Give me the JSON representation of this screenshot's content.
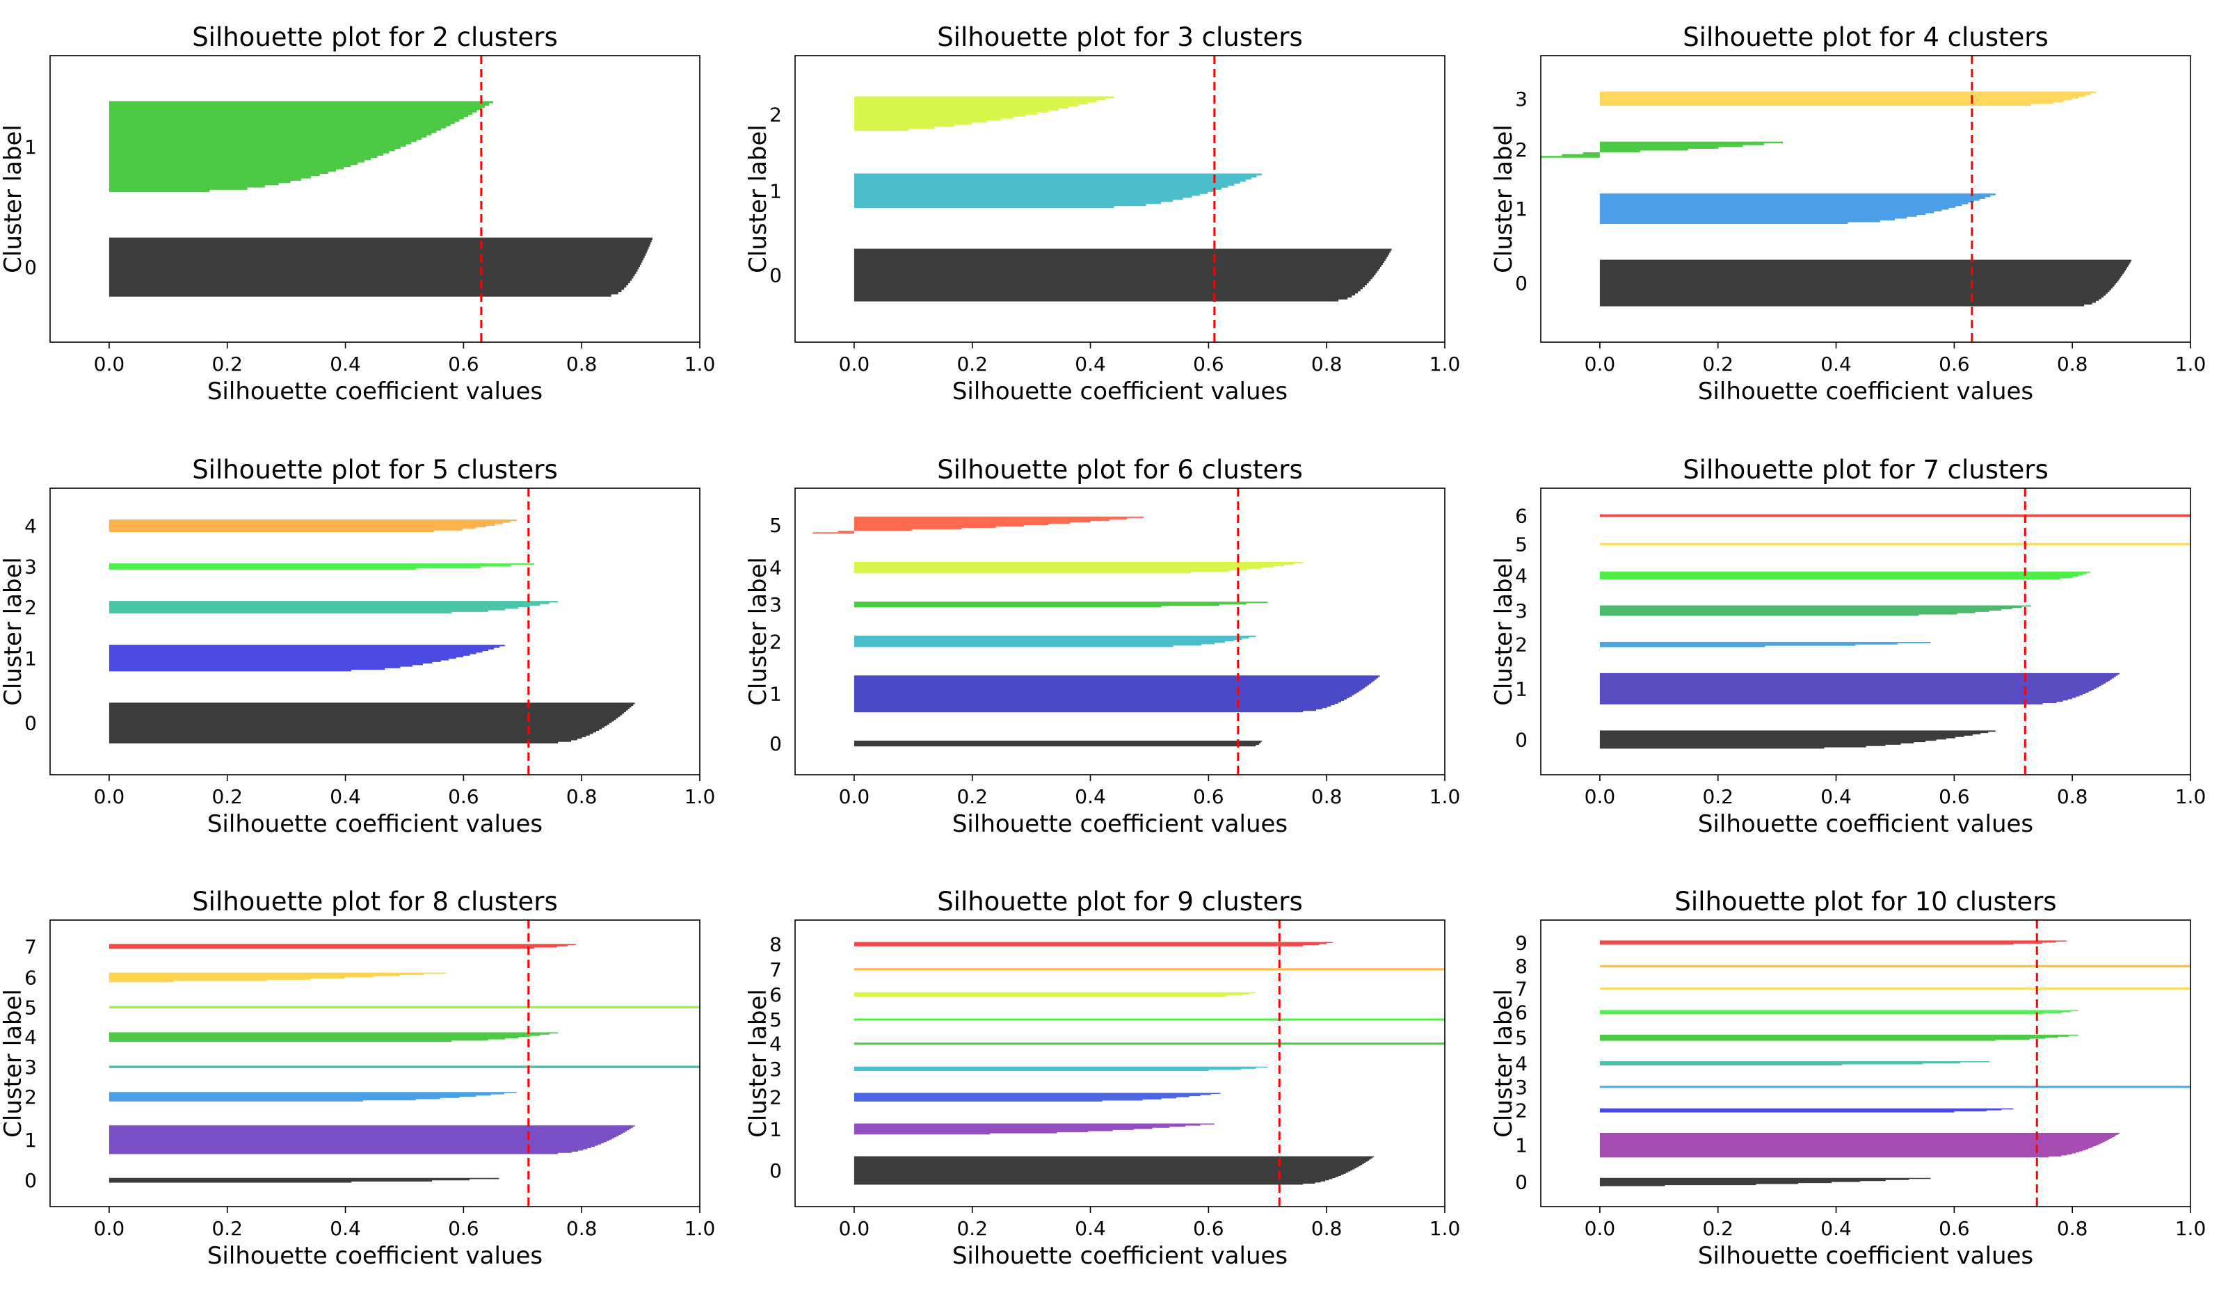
{
  "figure": {
    "background": "#ffffff"
  },
  "chart_data": [
    {
      "type": "bar",
      "title": "Silhouette plot for 2 clusters",
      "xlabel": "Silhouette coefficient values",
      "ylabel": "Cluster label",
      "xlim": [
        -0.1,
        1.0
      ],
      "xticks": [
        "0.0",
        "0.2",
        "0.4",
        "0.6",
        "0.8",
        "1.0"
      ],
      "average_silhouette": 0.63,
      "clusters": [
        {
          "label": "0",
          "color": "#3c3c3c",
          "size": 26,
          "max": 0.92,
          "min": 0.85,
          "neg": 0
        },
        {
          "label": "1",
          "color": "#4cca46",
          "size": 40,
          "max": 0.65,
          "min": 0.17,
          "neg": 0
        }
      ]
    },
    {
      "type": "bar",
      "title": "Silhouette plot for 3 clusters",
      "xlabel": "Silhouette coefficient values",
      "ylabel": "Cluster label",
      "xlim": [
        -0.1,
        1.0
      ],
      "xticks": [
        "0.0",
        "0.2",
        "0.4",
        "0.6",
        "0.8",
        "1.0"
      ],
      "average_silhouette": 0.61,
      "clusters": [
        {
          "label": "0",
          "color": "#3c3c3c",
          "size": 26,
          "max": 0.91,
          "min": 0.82,
          "neg": 0
        },
        {
          "label": "1",
          "color": "#4bbecc",
          "size": 17,
          "max": 0.69,
          "min": 0.44,
          "neg": 0
        },
        {
          "label": "2",
          "color": "#d9f74b",
          "size": 18,
          "max": 0.44,
          "min": 0.0,
          "neg": 0
        }
      ]
    },
    {
      "type": "bar",
      "title": "Silhouette plot for 4 clusters",
      "xlabel": "Silhouette coefficient values",
      "ylabel": "Cluster label",
      "xlim": [
        -0.1,
        1.0
      ],
      "xticks": [
        "0.0",
        "0.2",
        "0.4",
        "0.6",
        "0.8",
        "1.0"
      ],
      "average_silhouette": 0.63,
      "clusters": [
        {
          "label": "0",
          "color": "#3c3c3c",
          "size": 26,
          "max": 0.9,
          "min": 0.82,
          "neg": 0
        },
        {
          "label": "1",
          "color": "#4a9fe6",
          "size": 17,
          "max": 0.67,
          "min": 0.42,
          "neg": 0
        },
        {
          "label": "2",
          "color": "#4cca46",
          "size": 9,
          "max": 0.31,
          "min": -0.1,
          "neg": 0.35
        },
        {
          "label": "3",
          "color": "#fed65c",
          "size": 8,
          "max": 0.84,
          "min": 0.73,
          "neg": 0
        }
      ]
    },
    {
      "type": "bar",
      "title": "Silhouette plot for 5 clusters",
      "xlabel": "Silhouette coefficient values",
      "ylabel": "Cluster label",
      "xlim": [
        -0.1,
        1.0
      ],
      "xticks": [
        "0.0",
        "0.2",
        "0.4",
        "0.6",
        "0.8",
        "1.0"
      ],
      "average_silhouette": 0.71,
      "clusters": [
        {
          "label": "0",
          "color": "#3c3c3c",
          "size": 26,
          "max": 0.89,
          "min": 0.76,
          "neg": 0
        },
        {
          "label": "1",
          "color": "#4a4ae4",
          "size": 17,
          "max": 0.67,
          "min": 0.41,
          "neg": 0
        },
        {
          "label": "2",
          "color": "#4cc6a8",
          "size": 8,
          "max": 0.76,
          "min": 0.58,
          "neg": 0
        },
        {
          "label": "3",
          "color": "#4ef04c",
          "size": 4,
          "max": 0.72,
          "min": 0.52,
          "neg": 0
        },
        {
          "label": "4",
          "color": "#fdb24c",
          "size": 8,
          "max": 0.69,
          "min": 0.55,
          "neg": 0
        }
      ]
    },
    {
      "type": "bar",
      "title": "Silhouette plot for 6 clusters",
      "xlabel": "Silhouette coefficient values",
      "ylabel": "Cluster label",
      "xlim": [
        -0.1,
        1.0
      ],
      "xticks": [
        "0.0",
        "0.2",
        "0.4",
        "0.6",
        "0.8",
        "1.0"
      ],
      "average_silhouette": 0.65,
      "clusters": [
        {
          "label": "0",
          "color": "#3c3c3c",
          "size": 4,
          "max": 0.69,
          "min": 0.68,
          "neg": 0
        },
        {
          "label": "1",
          "color": "#4a4ac9",
          "size": 26,
          "max": 0.89,
          "min": 0.76,
          "neg": 0
        },
        {
          "label": "2",
          "color": "#4bbecc",
          "size": 8,
          "max": 0.68,
          "min": 0.54,
          "neg": 0
        },
        {
          "label": "3",
          "color": "#4cca46",
          "size": 4,
          "max": 0.7,
          "min": 0.52,
          "neg": 0
        },
        {
          "label": "4",
          "color": "#d9f74b",
          "size": 8,
          "max": 0.76,
          "min": 0.57,
          "neg": 0
        },
        {
          "label": "5",
          "color": "#ff6a4e",
          "size": 12,
          "max": 0.49,
          "min": -0.07,
          "neg": 0.15
        }
      ]
    },
    {
      "type": "bar",
      "title": "Silhouette plot for 7 clusters",
      "xlabel": "Silhouette coefficient values",
      "ylabel": "Cluster label",
      "xlim": [
        -0.1,
        1.0
      ],
      "xticks": [
        "0.0",
        "0.2",
        "0.4",
        "0.6",
        "0.8",
        "1.0"
      ],
      "average_silhouette": 0.72,
      "clusters": [
        {
          "label": "0",
          "color": "#3c3c3c",
          "size": 14,
          "max": 0.67,
          "min": 0.38,
          "neg": 0
        },
        {
          "label": "1",
          "color": "#5a4dc2",
          "size": 24,
          "max": 0.88,
          "min": 0.75,
          "neg": 0
        },
        {
          "label": "2",
          "color": "#4aa6e2",
          "size": 4,
          "max": 0.56,
          "min": 0.28,
          "neg": 0
        },
        {
          "label": "3",
          "color": "#4cba6c",
          "size": 8,
          "max": 0.73,
          "min": 0.54,
          "neg": 0
        },
        {
          "label": "4",
          "color": "#4cef4a",
          "size": 6,
          "max": 0.83,
          "min": 0.78,
          "neg": 0
        },
        {
          "label": "5",
          "color": "#fde04e",
          "size": 2,
          "max": 1.0,
          "min": 1.0,
          "neg": 0
        },
        {
          "label": "6",
          "color": "#f24848",
          "size": 2,
          "max": 1.0,
          "min": 1.0,
          "neg": 0
        }
      ]
    },
    {
      "type": "bar",
      "title": "Silhouette plot for 8 clusters",
      "xlabel": "Silhouette coefficient values",
      "ylabel": "Cluster label",
      "xlim": [
        -0.1,
        1.0
      ],
      "xticks": [
        "0.0",
        "0.2",
        "0.4",
        "0.6",
        "0.8",
        "1.0"
      ],
      "average_silhouette": 0.71,
      "clusters": [
        {
          "label": "0",
          "color": "#3c3c3c",
          "size": 4,
          "max": 0.66,
          "min": 0.41,
          "neg": 0
        },
        {
          "label": "1",
          "color": "#7a4ec4",
          "size": 24,
          "max": 0.89,
          "min": 0.76,
          "neg": 0
        },
        {
          "label": "2",
          "color": "#4aa0e6",
          "size": 8,
          "max": 0.69,
          "min": 0.43,
          "neg": 0
        },
        {
          "label": "3",
          "color": "#4ac0a8",
          "size": 2,
          "max": 1.0,
          "min": 1.0,
          "neg": 0
        },
        {
          "label": "4",
          "color": "#4cca46",
          "size": 8,
          "max": 0.76,
          "min": 0.58,
          "neg": 0
        },
        {
          "label": "5",
          "color": "#9ef04c",
          "size": 2,
          "max": 1.0,
          "min": 1.0,
          "neg": 0
        },
        {
          "label": "6",
          "color": "#fdd452",
          "size": 8,
          "max": 0.57,
          "min": 0.11,
          "neg": 0
        },
        {
          "label": "7",
          "color": "#f24848",
          "size": 4,
          "max": 0.79,
          "min": 0.72,
          "neg": 0
        }
      ]
    },
    {
      "type": "bar",
      "title": "Silhouette plot for 9 clusters",
      "xlabel": "Silhouette coefficient values",
      "ylabel": "Cluster label",
      "xlim": [
        -0.1,
        1.0
      ],
      "xticks": [
        "0.0",
        "0.2",
        "0.4",
        "0.6",
        "0.8",
        "1.0"
      ],
      "average_silhouette": 0.72,
      "clusters": [
        {
          "label": "0",
          "color": "#3c3c3c",
          "size": 26,
          "max": 0.88,
          "min": 0.76,
          "neg": 0
        },
        {
          "label": "1",
          "color": "#934ec2",
          "size": 10,
          "max": 0.61,
          "min": 0.23,
          "neg": 0
        },
        {
          "label": "2",
          "color": "#4a66e2",
          "size": 8,
          "max": 0.62,
          "min": 0.42,
          "neg": 0
        },
        {
          "label": "3",
          "color": "#4ac0cc",
          "size": 4,
          "max": 0.7,
          "min": 0.6,
          "neg": 0
        },
        {
          "label": "4",
          "color": "#4cca46",
          "size": 2,
          "max": 1.0,
          "min": 1.0,
          "neg": 0
        },
        {
          "label": "5",
          "color": "#4ef04c",
          "size": 2,
          "max": 1.0,
          "min": 1.0,
          "neg": 0
        },
        {
          "label": "6",
          "color": "#d9f74b",
          "size": 4,
          "max": 0.68,
          "min": 0.63,
          "neg": 0
        },
        {
          "label": "7",
          "color": "#fdb74c",
          "size": 2,
          "max": 1.0,
          "min": 1.0,
          "neg": 0
        },
        {
          "label": "8",
          "color": "#f24848",
          "size": 4,
          "max": 0.81,
          "min": 0.76,
          "neg": 0
        }
      ]
    },
    {
      "type": "bar",
      "title": "Silhouette plot for 10 clusters",
      "xlabel": "Silhouette coefficient values",
      "ylabel": "Cluster label",
      "xlim": [
        -0.1,
        1.0
      ],
      "xticks": [
        "0.0",
        "0.2",
        "0.4",
        "0.6",
        "0.8",
        "1.0"
      ],
      "average_silhouette": 0.74,
      "clusters": [
        {
          "label": "0",
          "color": "#3c3c3c",
          "size": 8,
          "max": 0.56,
          "min": 0.11,
          "neg": 0
        },
        {
          "label": "1",
          "color": "#a64cb2",
          "size": 24,
          "max": 0.88,
          "min": 0.76,
          "neg": 0
        },
        {
          "label": "2",
          "color": "#4a4ae4",
          "size": 4,
          "max": 0.7,
          "min": 0.6,
          "neg": 0
        },
        {
          "label": "3",
          "color": "#4aa8e4",
          "size": 2,
          "max": 1.0,
          "min": 1.0,
          "neg": 0
        },
        {
          "label": "4",
          "color": "#4cc0a8",
          "size": 4,
          "max": 0.66,
          "min": 0.41,
          "neg": 0
        },
        {
          "label": "5",
          "color": "#4cca46",
          "size": 6,
          "max": 0.81,
          "min": 0.67,
          "neg": 0
        },
        {
          "label": "6",
          "color": "#4ef04c",
          "size": 4,
          "max": 0.81,
          "min": 0.75,
          "neg": 0
        },
        {
          "label": "7",
          "color": "#fde04e",
          "size": 2,
          "max": 1.0,
          "min": 1.0,
          "neg": 0
        },
        {
          "label": "8",
          "color": "#fdb74c",
          "size": 2,
          "max": 1.0,
          "min": 1.0,
          "neg": 0
        },
        {
          "label": "9",
          "color": "#f24848",
          "size": 4,
          "max": 0.79,
          "min": 0.7,
          "neg": 0
        }
      ]
    }
  ]
}
